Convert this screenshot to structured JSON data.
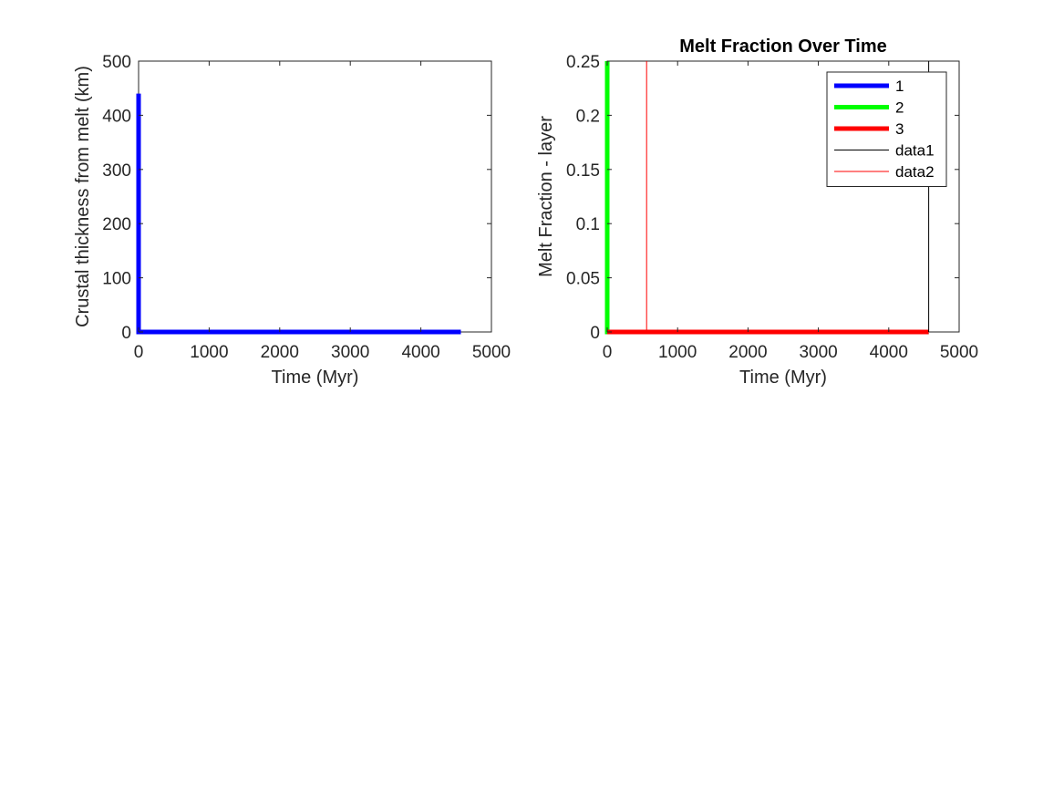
{
  "chart_data": [
    {
      "type": "line",
      "title": "",
      "xlabel": "Time (Myr)",
      "ylabel": "Crustal thickness from melt (km)",
      "xlim": [
        0,
        5000
      ],
      "ylim": [
        0,
        500
      ],
      "xticks": [
        0,
        1000,
        2000,
        3000,
        4000,
        5000
      ],
      "yticks": [
        0,
        100,
        200,
        300,
        400,
        500
      ],
      "xtick_labels": [
        "0",
        "1000",
        "2000",
        "3000",
        "4000",
        "5000"
      ],
      "ytick_labels": [
        "0",
        "100",
        "200",
        "300",
        "400",
        "500"
      ],
      "grid": false,
      "series": [
        {
          "color": "#0000ff",
          "x": [
            0,
            0,
            30,
            4567
          ],
          "y": [
            440,
            0,
            0,
            0
          ]
        }
      ]
    },
    {
      "type": "line",
      "title": "Melt Fraction Over Time",
      "xlabel": "Time (Myr)",
      "ylabel": "Melt Fraction - layer",
      "xlim": [
        0,
        5000
      ],
      "ylim": [
        0,
        0.25
      ],
      "xticks": [
        0,
        1000,
        2000,
        3000,
        4000,
        5000
      ],
      "yticks": [
        0,
        0.05,
        0.1,
        0.15,
        0.2,
        0.25
      ],
      "xtick_labels": [
        "0",
        "1000",
        "2000",
        "3000",
        "4000",
        "5000"
      ],
      "ytick_labels": [
        "0",
        "0.05",
        "0.1",
        "0.15",
        "0.2",
        "0.25"
      ],
      "grid": false,
      "legend_position": "top-right",
      "series": [
        {
          "name": "1",
          "color": "#0000ff",
          "kind": "line",
          "x": [
            0,
            0,
            30,
            4567
          ],
          "y": [
            0.25,
            0,
            0,
            0
          ]
        },
        {
          "name": "2",
          "color": "#00ff00",
          "kind": "line",
          "x": [
            0,
            0,
            30,
            4567
          ],
          "y": [
            0.25,
            0,
            0,
            0
          ]
        },
        {
          "name": "3",
          "color": "#ff0000",
          "kind": "line",
          "x": [
            0,
            4567
          ],
          "y": [
            0,
            0
          ]
        },
        {
          "name": "data1",
          "color": "#000000",
          "kind": "vline",
          "x": [
            4567,
            4567
          ],
          "y": [
            0,
            0.25
          ]
        },
        {
          "name": "data2",
          "color": "#ff0000",
          "kind": "vline",
          "x": [
            560,
            560
          ],
          "y": [
            0,
            0.25
          ]
        }
      ]
    }
  ]
}
